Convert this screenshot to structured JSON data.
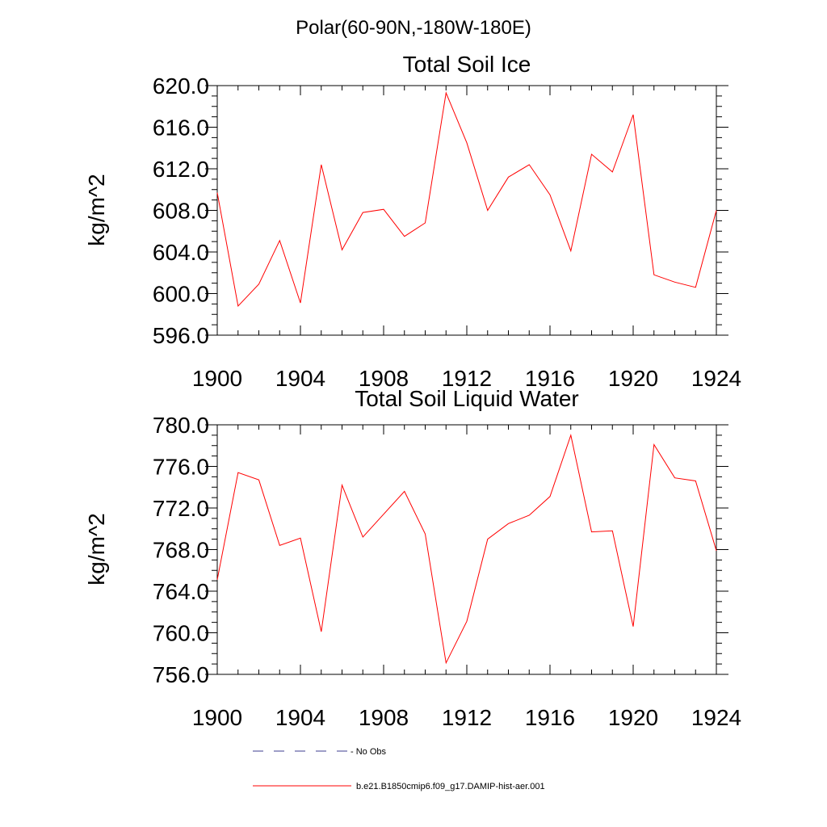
{
  "page_title": "Polar(60-90N,-180W-180E)",
  "colors": {
    "series": "#ff0000",
    "no_obs": "#3d3d8f",
    "axis": "#000000"
  },
  "legend": {
    "no_obs_label": "- No Obs",
    "series_label": "b.e21.B1850cmip6.f09_g17.DAMIP-hist-aer.001"
  },
  "chart_data": [
    {
      "type": "line",
      "title": "Total Soil Ice",
      "xlabel": "",
      "ylabel": "kg/m^2",
      "xlim": [
        1900,
        1924
      ],
      "ylim": [
        596,
        620
      ],
      "grid": false,
      "x_ticks": [
        1900,
        1904,
        1908,
        1912,
        1916,
        1920,
        1924
      ],
      "x_tick_labels": [
        "1900",
        "1904",
        "1908",
        "1912",
        "1916",
        "1920",
        "1924"
      ],
      "y_ticks": [
        596,
        600,
        604,
        608,
        612,
        616,
        620
      ],
      "y_tick_labels": [
        "596.0",
        "600.0",
        "604.0",
        "608.0",
        "612.0",
        "616.0",
        "620.0"
      ],
      "x": [
        1900,
        1901,
        1902,
        1903,
        1904,
        1905,
        1906,
        1907,
        1908,
        1909,
        1910,
        1911,
        1912,
        1913,
        1914,
        1915,
        1916,
        1917,
        1918,
        1919,
        1920,
        1921,
        1922,
        1923,
        1924
      ],
      "series": [
        {
          "values": [
            609.7,
            598.8,
            600.9,
            605.1,
            599.1,
            612.4,
            604.2,
            607.8,
            608.1,
            605.5,
            606.8,
            619.3,
            614.5,
            608.0,
            611.2,
            612.4,
            609.5,
            604.1,
            613.4,
            611.7,
            617.2,
            601.8,
            601.1,
            600.6,
            608.0
          ]
        }
      ]
    },
    {
      "type": "line",
      "title": "Total Soil Liquid Water",
      "xlabel": "",
      "ylabel": "kg/m^2",
      "xlim": [
        1900,
        1924
      ],
      "ylim": [
        756,
        780
      ],
      "grid": false,
      "x_ticks": [
        1900,
        1904,
        1908,
        1912,
        1916,
        1920,
        1924
      ],
      "x_tick_labels": [
        "1900",
        "1904",
        "1908",
        "1912",
        "1916",
        "1920",
        "1924"
      ],
      "y_ticks": [
        756,
        760,
        764,
        768,
        772,
        776,
        780
      ],
      "y_tick_labels": [
        "756.0",
        "760.0",
        "764.0",
        "768.0",
        "772.0",
        "776.0",
        "780.0"
      ],
      "x": [
        1900,
        1901,
        1902,
        1903,
        1904,
        1905,
        1906,
        1907,
        1908,
        1909,
        1910,
        1911,
        1912,
        1913,
        1914,
        1915,
        1916,
        1917,
        1918,
        1919,
        1920,
        1921,
        1922,
        1923,
        1924
      ],
      "series": [
        {
          "values": [
            765.1,
            775.4,
            774.7,
            768.4,
            769.1,
            760.1,
            774.2,
            769.2,
            771.4,
            773.6,
            769.5,
            757.1,
            761.1,
            769.0,
            770.5,
            771.3,
            773.1,
            779.0,
            769.7,
            769.8,
            760.6,
            778.1,
            774.9,
            774.6,
            767.9
          ]
        }
      ]
    }
  ]
}
